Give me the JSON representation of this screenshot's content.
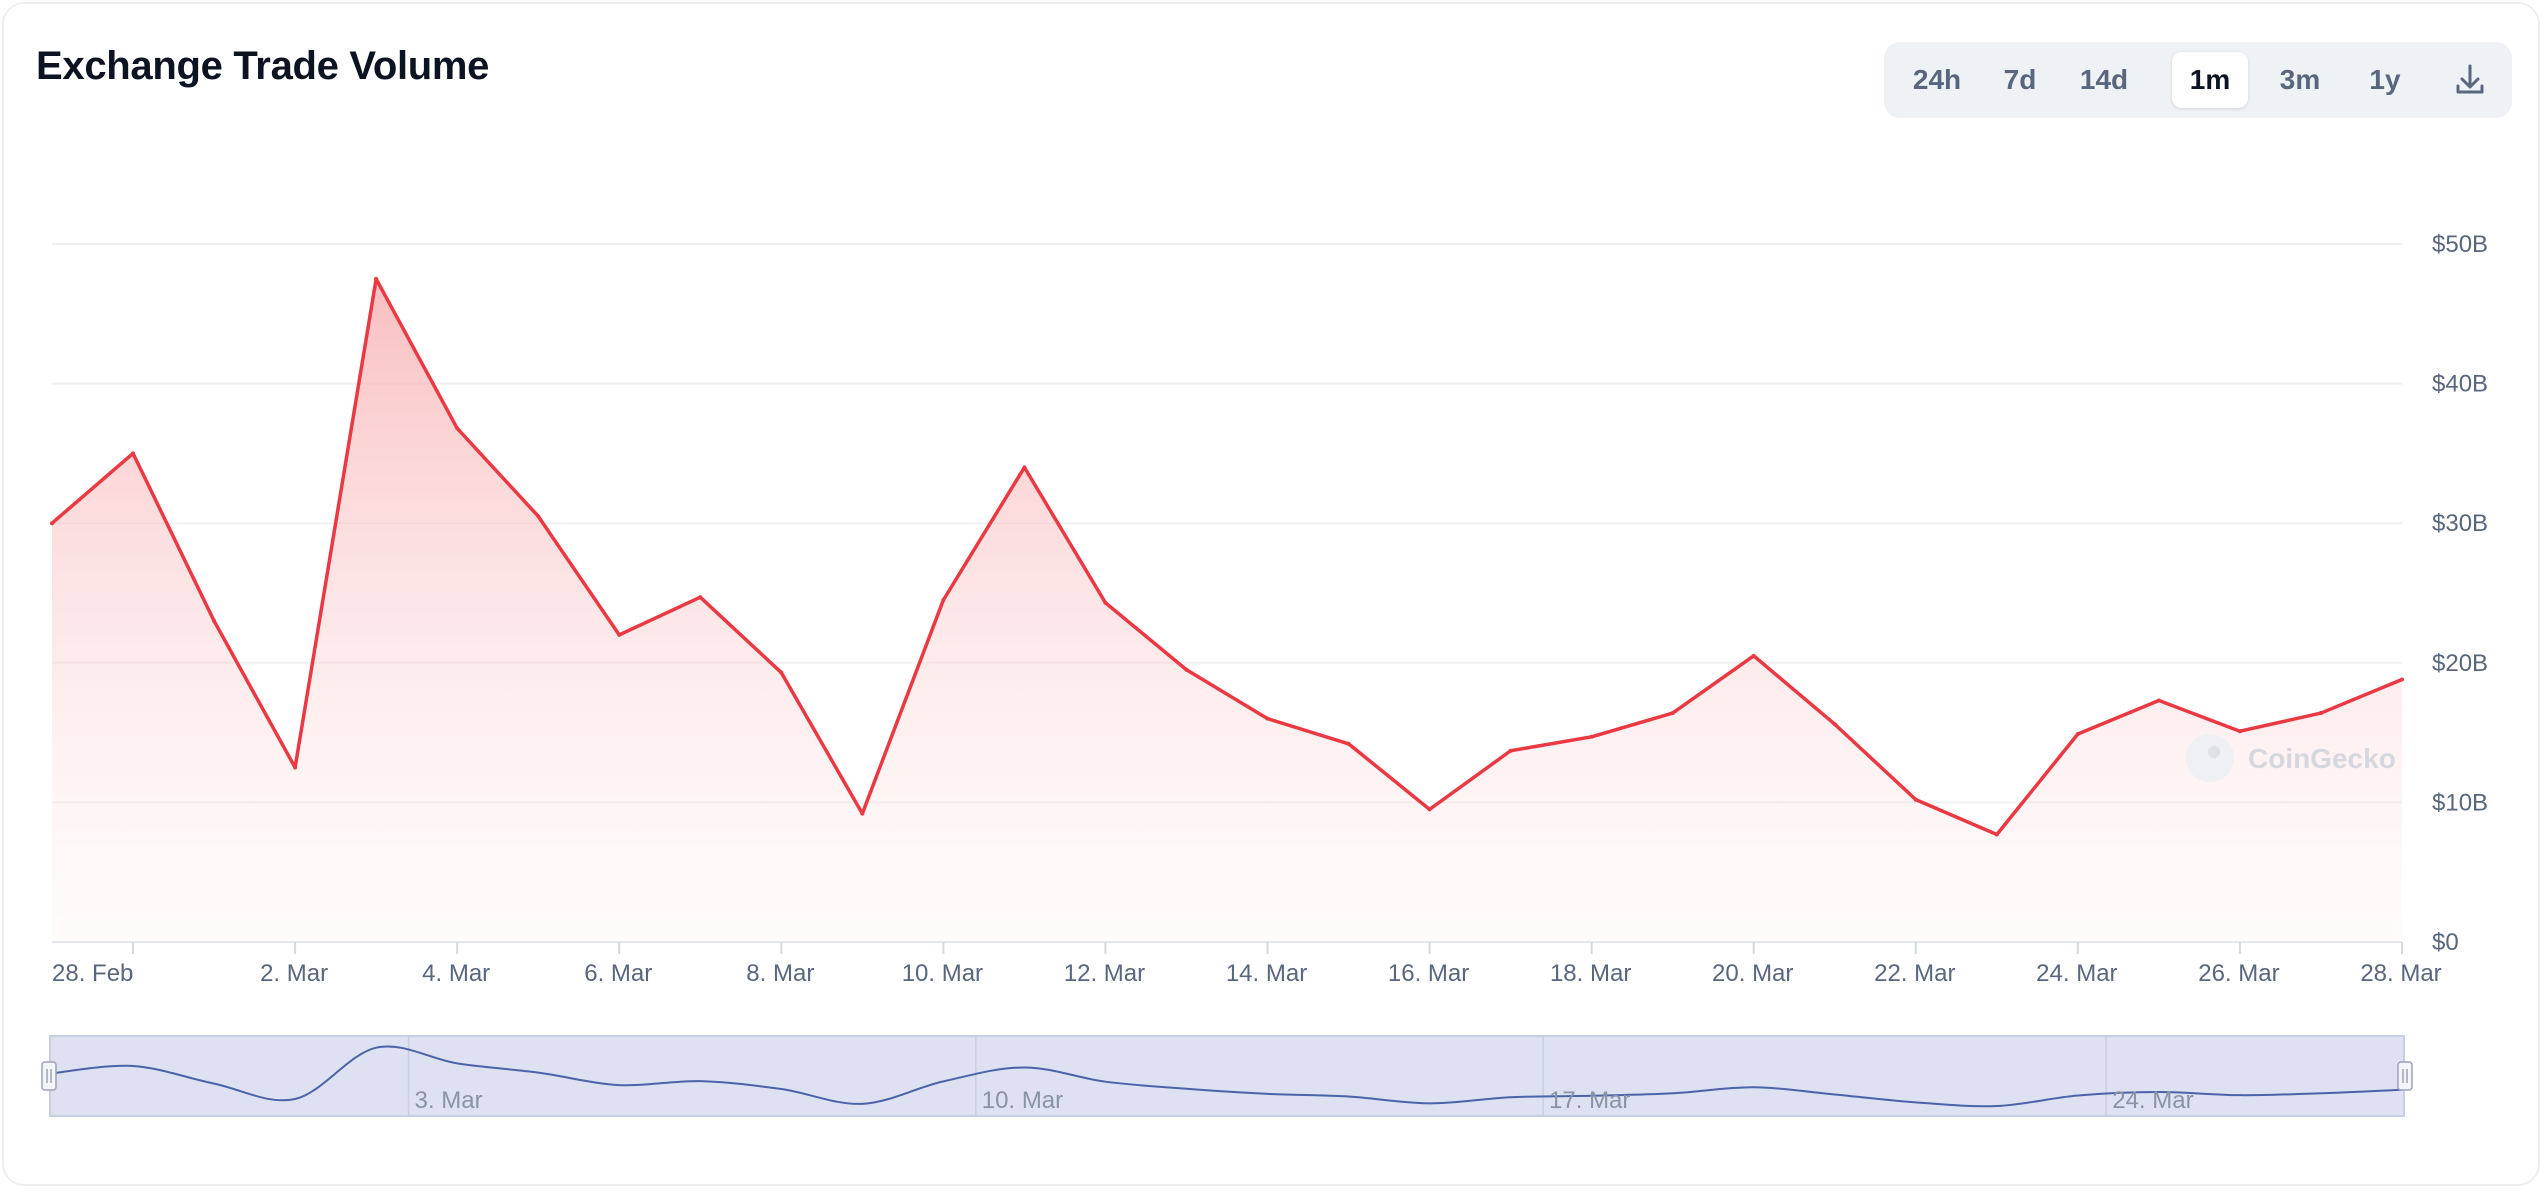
{
  "header": {
    "title": "Exchange Trade Volume"
  },
  "range_selector": {
    "buttons": [
      "24h",
      "7d",
      "14d",
      "1m",
      "3m",
      "1y"
    ],
    "active": "1m",
    "download_icon": "download-icon"
  },
  "watermark": {
    "text": "CoinGecko",
    "icon": "gecko-logo-icon"
  },
  "colors": {
    "line": "#ea3943",
    "area_top": "#f9c5c6",
    "navigator_fill": "#dde1f1",
    "navigator_line": "#4b63a8"
  },
  "navigator": {
    "labels": [
      "3. Mar",
      "10. Mar",
      "17. Mar",
      "24. Mar"
    ]
  },
  "chart_data": {
    "type": "area",
    "title": "Exchange Trade Volume",
    "xlabel": "",
    "ylabel": "",
    "x_ticks": [
      "28. Feb",
      "2. Mar",
      "4. Mar",
      "6. Mar",
      "8. Mar",
      "10. Mar",
      "12. Mar",
      "14. Mar",
      "16. Mar",
      "18. Mar",
      "20. Mar",
      "22. Mar",
      "24. Mar",
      "26. Mar",
      "28. Mar"
    ],
    "y_ticks": [
      "$0",
      "$10B",
      "$20B",
      "$30B",
      "$40B",
      "$50B"
    ],
    "ylim": [
      0,
      50
    ],
    "y_unit": "B USD",
    "grid": true,
    "series": [
      {
        "x": [
          "27. Feb",
          "28. Feb",
          "1. Mar",
          "2. Mar",
          "3. Mar",
          "4. Mar",
          "5. Mar",
          "6. Mar",
          "7. Mar",
          "8. Mar",
          "9. Mar",
          "10. Mar",
          "11. Mar",
          "12. Mar",
          "13. Mar",
          "14. Mar",
          "15. Mar",
          "16. Mar",
          "17. Mar",
          "18. Mar",
          "19. Mar",
          "20. Mar",
          "21. Mar",
          "22. Mar",
          "23. Mar",
          "24. Mar",
          "25. Mar",
          "26. Mar",
          "27. Mar",
          "28. Mar"
        ],
        "values": [
          30.0,
          35.0,
          23.0,
          12.5,
          47.5,
          36.8,
          30.5,
          22.0,
          24.7,
          19.3,
          9.2,
          24.5,
          34.0,
          24.3,
          19.5,
          16.0,
          14.2,
          9.5,
          13.7,
          14.7,
          16.4,
          20.5,
          15.6,
          10.2,
          7.7,
          14.9,
          17.3,
          15.1,
          16.4,
          18.8
        ]
      }
    ]
  }
}
